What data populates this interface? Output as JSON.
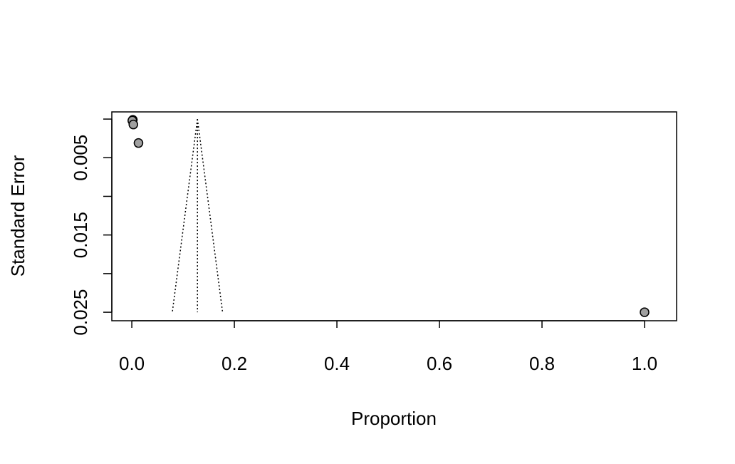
{
  "chart_data": {
    "type": "funnel",
    "x_label": "Proportion",
    "y_label": "Standard Error",
    "x": [
      0.002,
      0.001,
      0.003,
      0.013,
      1.0
    ],
    "values": [
      0.0001,
      0.0002,
      0.0007,
      0.0031,
      0.025
    ],
    "color": "#a0a0a0",
    "funnel": {
      "left": {
        "x": [
          0.128,
          0.079
        ],
        "y": [
          0,
          0.025
        ]
      },
      "center": {
        "x": [
          0.128,
          0.128
        ],
        "y": [
          0,
          0.025
        ]
      },
      "right": {
        "x": [
          0.128,
          0.177
        ],
        "y": [
          0,
          0.025
        ]
      }
    },
    "xlim": [
      -0.039,
      1.0625
    ],
    "ylim": [
      -0.00093,
      0.0261
    ],
    "y_inverted": true,
    "xticks": [
      {
        "value": 0,
        "label": "0.0"
      },
      {
        "value": 0.2,
        "label": "0.2"
      },
      {
        "value": 0.4,
        "label": "0.4"
      },
      {
        "value": 0.6,
        "label": "0.6"
      },
      {
        "value": 0.8,
        "label": "0.8"
      },
      {
        "value": 1,
        "label": "1.0"
      }
    ],
    "yticks": [
      {
        "value": 0,
        "label": null
      },
      0.005,
      {
        "value": 0.01,
        "label": null
      },
      0.015,
      {
        "value": 0.02,
        "label": null
      },
      0.025
    ]
  }
}
